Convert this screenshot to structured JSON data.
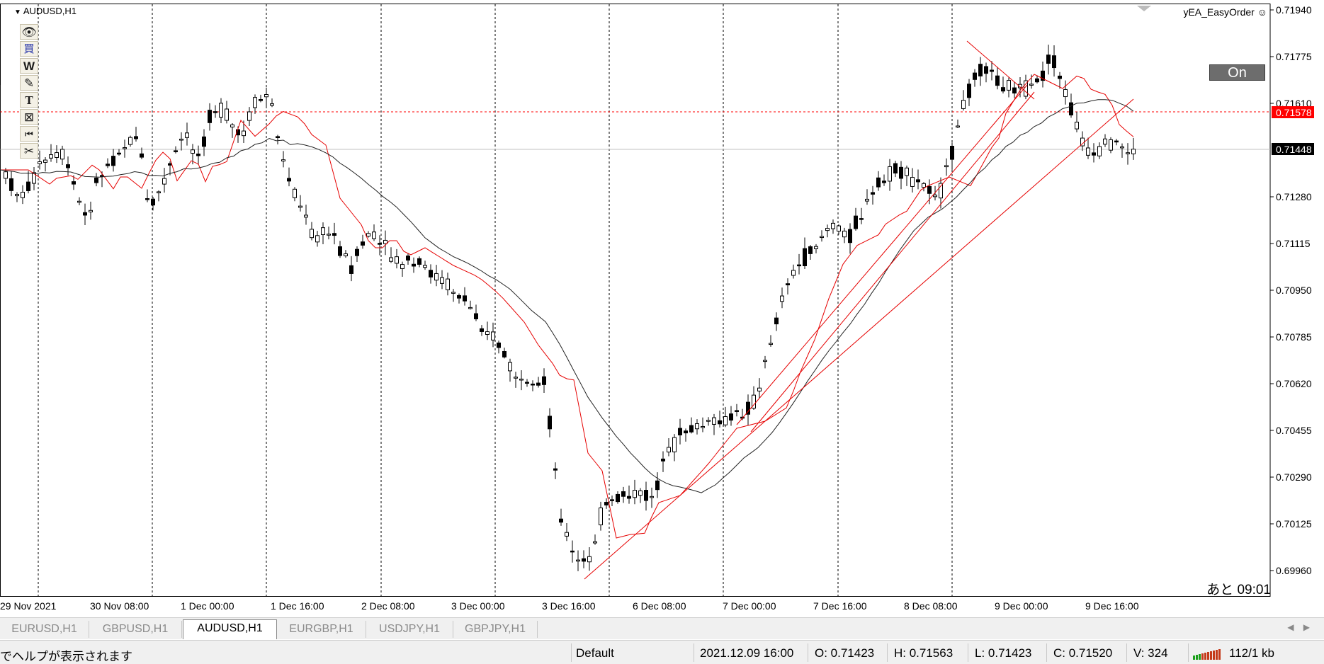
{
  "chart": {
    "symbol_title": "AUDUSD,H1",
    "ea_name": "yEA_EasyOrder",
    "on_button": "On",
    "countdown": "あと 09:01",
    "price_scale": {
      "labels": [
        "0.71940",
        "0.71775",
        "0.71610",
        "0.71280",
        "0.71115",
        "0.70950",
        "0.70785",
        "0.70620",
        "0.70455",
        "0.70290",
        "0.70125",
        "0.69960"
      ],
      "ask_line_label": "0.71578",
      "bid_line_label": "0.71448",
      "ask_color": "#ff0000",
      "bid_color": "#000000"
    },
    "time_axis": [
      "29 Nov 2021",
      "30 Nov 08:00",
      "1 Dec 00:00",
      "1 Dec 16:00",
      "2 Dec 08:00",
      "3 Dec 00:00",
      "3 Dec 16:00",
      "6 Dec 08:00",
      "7 Dec 00:00",
      "7 Dec 16:00",
      "8 Dec 08:00",
      "9 Dec 00:00",
      "9 Dec 16:00"
    ],
    "toolbar_icons": [
      "eye-icon",
      "buy-kanji-icon",
      "w-icon",
      "pencil-icon",
      "text-icon",
      "image-icon",
      "rewind-icon",
      "scissors-icon"
    ]
  },
  "tabs": [
    {
      "label": "EURUSD,H1",
      "active": false
    },
    {
      "label": "GBPUSD,H1",
      "active": false
    },
    {
      "label": "AUDUSD,H1",
      "active": true
    },
    {
      "label": "EURGBP,H1",
      "active": false
    },
    {
      "label": "USDJPY,H1",
      "active": false
    },
    {
      "label": "GBPJPY,H1",
      "active": false
    }
  ],
  "status": {
    "help_text": "でヘルプが表示されます",
    "profile": "Default",
    "datetime": "2021.12.09 16:00",
    "open": "O: 0.71423",
    "high": "H: 0.71563",
    "low": "L: 0.71423",
    "close": "C: 0.71520",
    "volume": "V: 324",
    "traffic": "112/1 kb"
  }
}
